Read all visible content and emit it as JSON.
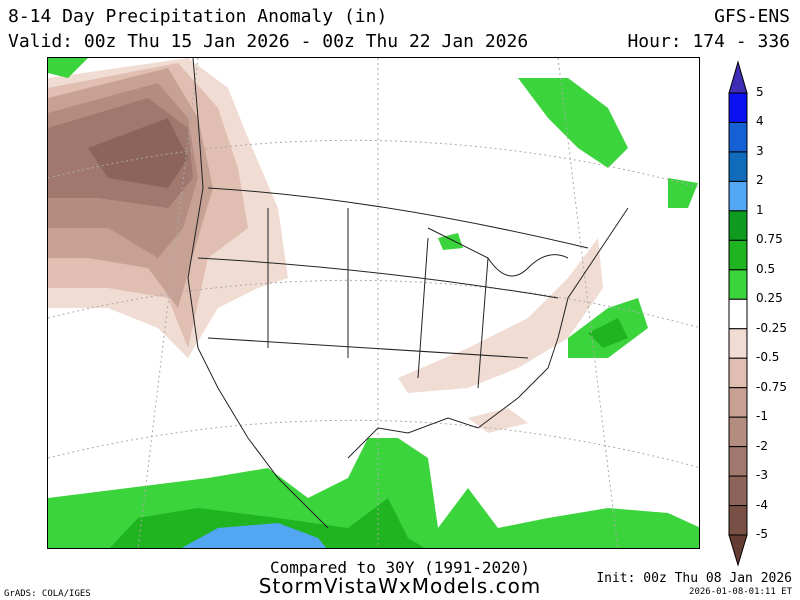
{
  "header": {
    "title": "8-14 Day Precipitation Anomaly (in)",
    "valid": "Valid: 00z Thu 15 Jan 2026 - 00z Thu 22 Jan 2026",
    "model": "GFS-ENS",
    "hour": "Hour: 174 - 336"
  },
  "footer": {
    "compared": "Compared to 30Y (1991-2020)",
    "site": "StormVistaWxModels.com",
    "init": "Init: 00z Thu 08 Jan 2026",
    "timestamp": "2026-01-08-01:11 ET",
    "credit": "GrADS: COLA/IGES"
  },
  "colorbar": {
    "labels": [
      "5",
      "4",
      "3",
      "2",
      "1",
      "0.75",
      "0.5",
      "0.25",
      "-0.25",
      "-0.5",
      "-0.75",
      "-1",
      "-2",
      "-3",
      "-4",
      "-5"
    ],
    "colors": [
      "#0a10f0",
      "#1660d6",
      "#106bbb",
      "#52a6f2",
      "#0f9b20",
      "#20b420",
      "#3cd43c",
      "#ffffff",
      "#f0dcd2",
      "#e0beb2",
      "#c8a195",
      "#b48d81",
      "#a0786e",
      "#8c6459",
      "#785046"
    ],
    "top_arrow": "#3f2db5",
    "bottom_arrow": "#643c32"
  }
}
